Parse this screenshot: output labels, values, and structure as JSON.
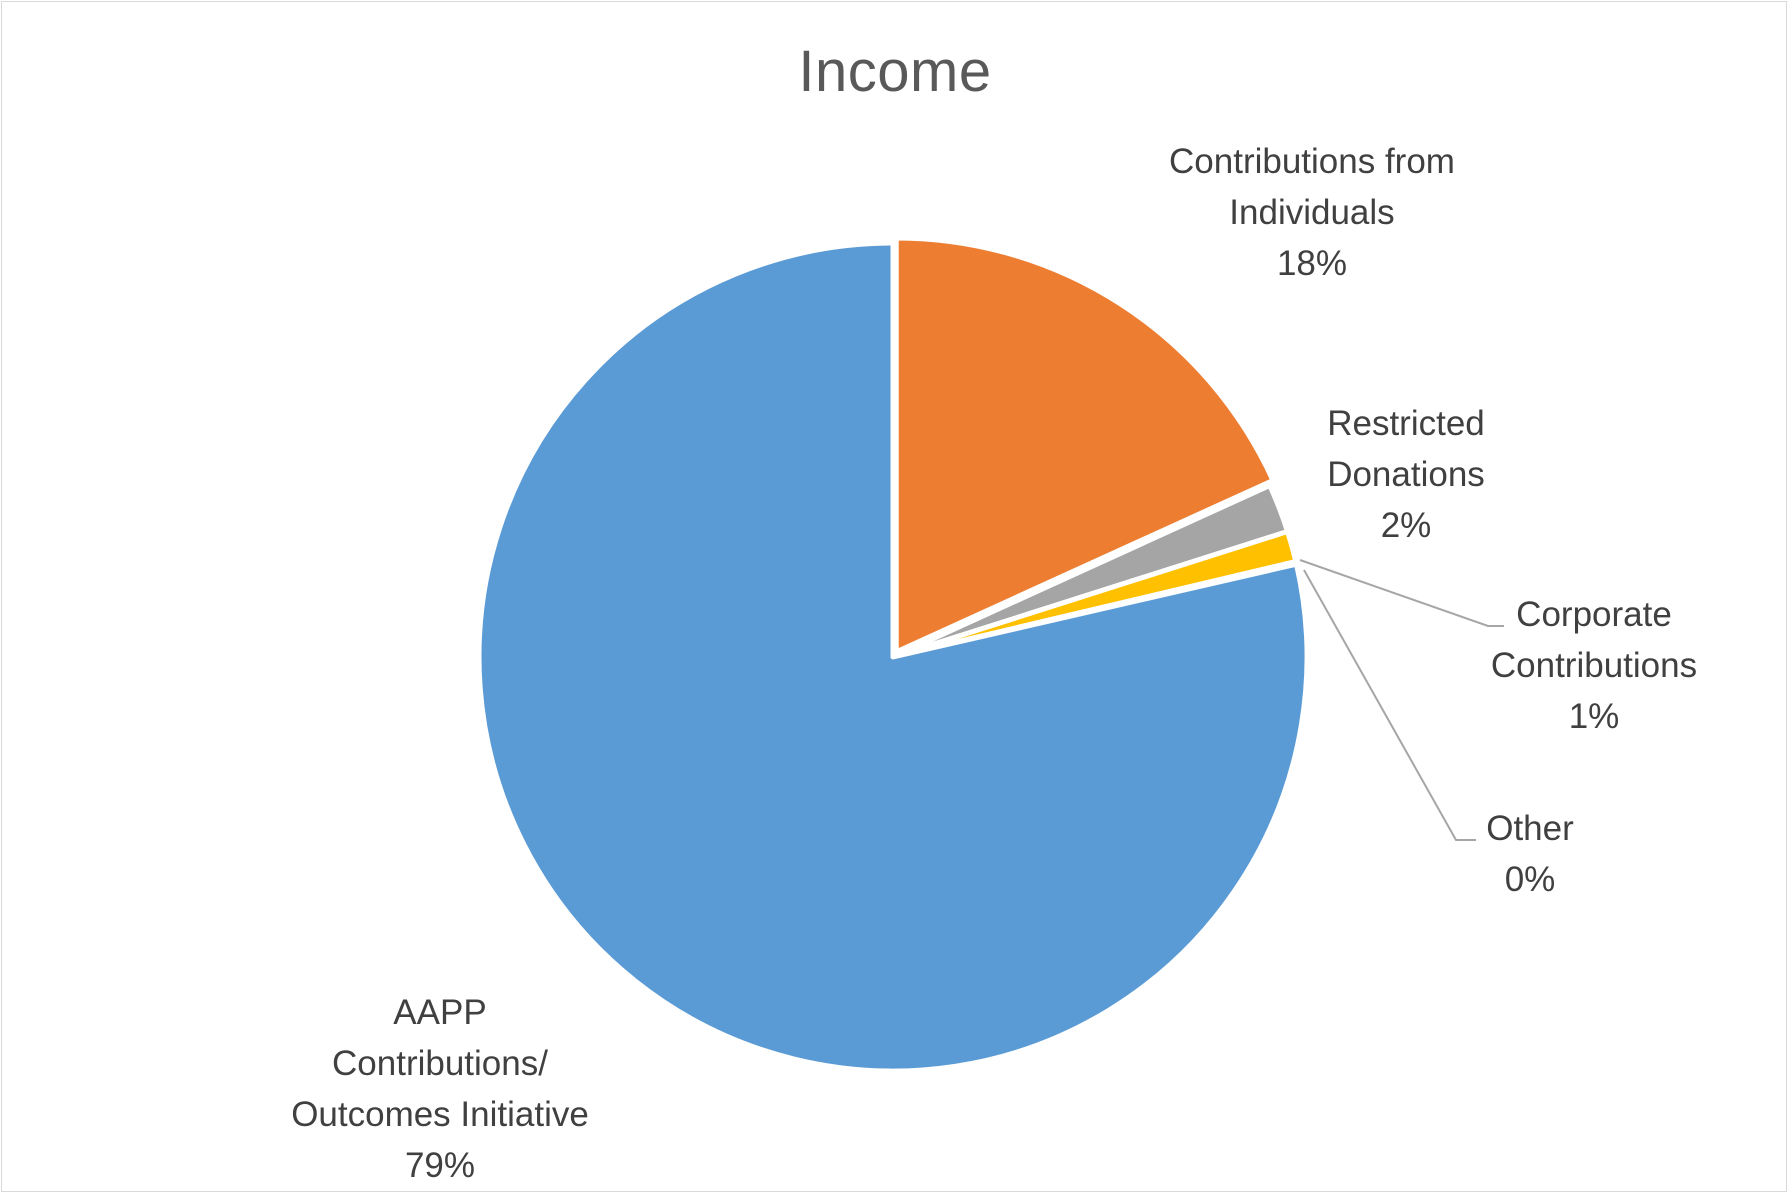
{
  "chart_data": {
    "type": "pie",
    "title": "Income",
    "slices": [
      {
        "name": "Contributions from Individuals",
        "label_lines": [
          "Contributions from",
          "Individuals"
        ],
        "percent_label": "18%",
        "value": 18.2,
        "color": "#ED7D31"
      },
      {
        "name": "Restricted Donations",
        "label_lines": [
          "Restricted",
          "Donations"
        ],
        "percent_label": "2%",
        "value": 1.9,
        "color": "#A5A5A5"
      },
      {
        "name": "Corporate Contributions",
        "label_lines": [
          "Corporate",
          "Contributions"
        ],
        "percent_label": "1%",
        "value": 1.2,
        "color": "#FFC000"
      },
      {
        "name": "Other",
        "label_lines": [
          "Other"
        ],
        "percent_label": "0%",
        "value": 0.1,
        "color": "#4472C4"
      },
      {
        "name": "AAPP Contributions/ Outcomes Initiative",
        "label_lines": [
          "AAPP",
          "Contributions/",
          "Outcomes Initiative"
        ],
        "percent_label": "79%",
        "value": 78.6,
        "color": "#5B9BD5"
      }
    ],
    "start_angle": "12 o'clock",
    "direction": "clockwise",
    "exploded_slice": "Contributions from Individuals",
    "legend": "none"
  }
}
